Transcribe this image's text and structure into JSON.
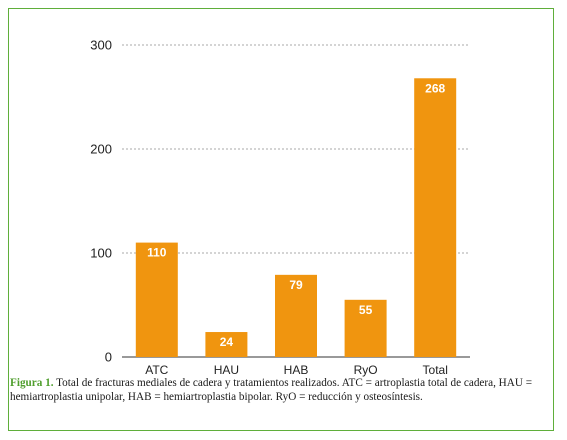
{
  "colors": {
    "bar": "#f0950f",
    "border": "#5fae3a",
    "caption_label": "#4f9e2d",
    "grid": "#aaaaaa"
  },
  "chart_data": {
    "type": "bar",
    "categories": [
      "ATC",
      "HAU",
      "HAB",
      "RyO",
      "Total"
    ],
    "values": [
      110,
      24,
      79,
      55,
      268
    ],
    "data_labels": [
      "110",
      "24",
      "79",
      "55",
      "268"
    ],
    "yticks": [
      0,
      100,
      200,
      300
    ],
    "ytick_labels": [
      "0",
      "100",
      "200",
      "300"
    ],
    "ylim": [
      0,
      300
    ],
    "grid": true,
    "title": "",
    "xlabel": "",
    "ylabel": ""
  },
  "caption": {
    "label": "Figura 1.",
    "text": " Total de fracturas mediales de cadera y tratamientos realizados. ATC = artroplastia total de cadera, HAU = hemiartroplastia unipolar, HAB = hemiartroplastia bipolar. RyO = reducción y osteosíntesis."
  }
}
